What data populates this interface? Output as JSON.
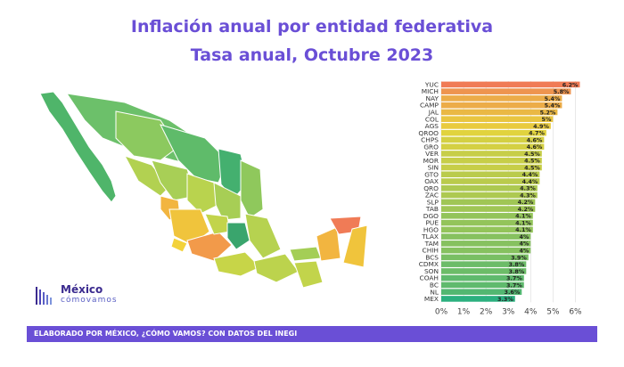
{
  "title": "Inflación anual por entidad federativa",
  "subtitle": "Tasa anual, Octubre 2023",
  "logo": {
    "main": "México",
    "sub": "cómovamos"
  },
  "footer": "ELABORADO POR MÉXICO, ¿CÓMO VAMOS? CON DATOS DEL INEGI",
  "colors": {
    "title": "#6a4fd6",
    "footer": "#6a4fd6",
    "high": "#f07b56",
    "mid": "#e8d43c",
    "low": "#2bb07f"
  },
  "chart_data": {
    "type": "bar",
    "orientation": "horizontal",
    "categories": [
      "YUC",
      "MICH",
      "NAY",
      "CAMP",
      "JAL",
      "COL",
      "AGS",
      "QROO",
      "CHPS",
      "GRO",
      "VER",
      "MOR",
      "SIN",
      "GTO",
      "OAX",
      "QRO",
      "ZAC",
      "SLP",
      "TAB",
      "DGO",
      "PUE",
      "HGO",
      "TLAX",
      "TAM",
      "CHIH",
      "BCS",
      "CDMX",
      "SON",
      "COAH",
      "BC",
      "NL",
      "MEX"
    ],
    "values": [
      6.2,
      5.8,
      5.4,
      5.4,
      5.2,
      5.0,
      4.9,
      4.7,
      4.6,
      4.6,
      4.5,
      4.5,
      4.5,
      4.4,
      4.4,
      4.3,
      4.3,
      4.2,
      4.2,
      4.1,
      4.1,
      4.1,
      4.0,
      4.0,
      4.0,
      3.9,
      3.8,
      3.8,
      3.7,
      3.7,
      3.6,
      3.3
    ],
    "value_labels": [
      "6.2%",
      "5.8%",
      "5.4%",
      "5.4%",
      "5.2%",
      "5%",
      "4.9%",
      "4.7%",
      "4.6%",
      "4.6%",
      "4.5%",
      "4.5%",
      "4.5%",
      "4.4%",
      "4.4%",
      "4.3%",
      "4.3%",
      "4.2%",
      "4.2%",
      "4.1%",
      "4.1%",
      "4.1%",
      "4%",
      "4%",
      "4%",
      "3.9%",
      "3.8%",
      "3.8%",
      "3.7%",
      "3.7%",
      "3.6%",
      "3.3%"
    ],
    "xticks": [
      "0%",
      "1%",
      "2%",
      "3%",
      "4%",
      "5%",
      "6%"
    ],
    "xlim": [
      0,
      6.5
    ],
    "grid": true,
    "color_scale": "green-yellow-orange (low to high)"
  }
}
